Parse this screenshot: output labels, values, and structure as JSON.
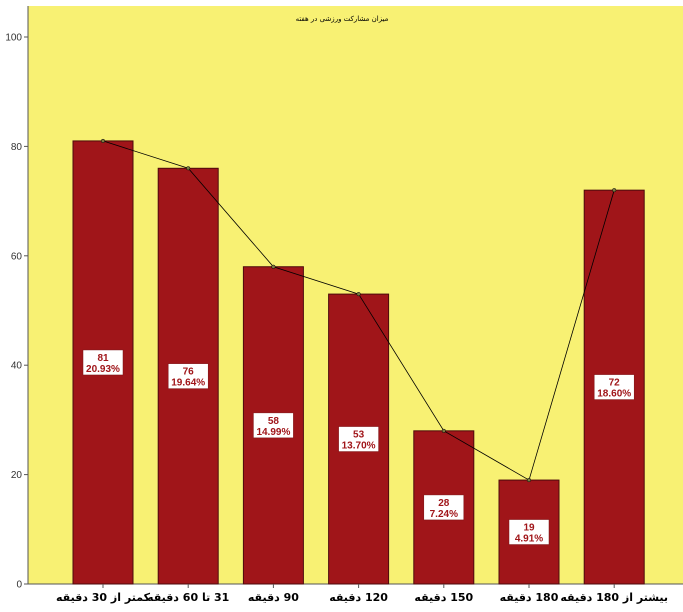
{
  "chart_data": {
    "type": "bar",
    "title": "میزان مشارکت ورزشی در هفته",
    "categories": [
      "کمتر از 30 دقیقه",
      "31 تا 60 دقیقه",
      "90 دقیقه",
      "120 دقیقه",
      "150 دقیقه",
      "180 دقیقه",
      "بیشتر از 180 دقیقه"
    ],
    "values": [
      81,
      76,
      58,
      53,
      28,
      19,
      72
    ],
    "percent_labels": [
      "20.93%",
      "19.64%",
      "14.99%",
      "13.70%",
      "7.24%",
      "4.91%",
      "18.60%"
    ],
    "overlay_line": "values",
    "yticks": [
      0,
      20,
      40,
      60,
      80,
      100
    ],
    "ylim": [
      0,
      100
    ],
    "grid": false,
    "colors": {
      "plot_background": "#f8f173",
      "bar_fill": "#a01519",
      "bar_stroke": "#4d0a0c",
      "line": "#000000",
      "label_box": "#ffffff",
      "label_text": "#a01519"
    }
  }
}
